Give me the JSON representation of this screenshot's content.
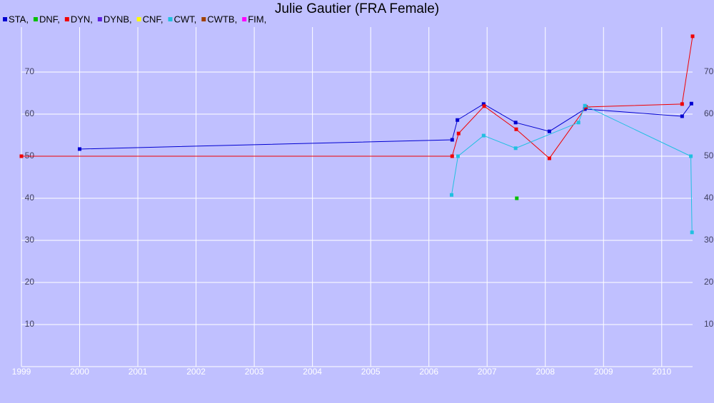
{
  "chart_data": {
    "type": "line",
    "title": "Julie Gautier (FRA Female)",
    "xlim": [
      1999,
      2010.53
    ],
    "ylim": [
      0,
      80
    ],
    "xticks": [
      1999,
      2000,
      2001,
      2002,
      2003,
      2004,
      2005,
      2006,
      2007,
      2008,
      2009,
      2010
    ],
    "yticks": [
      10,
      20,
      30,
      40,
      50,
      60,
      70
    ],
    "grid": true,
    "legend": "top",
    "series": [
      {
        "name": "STA,",
        "color": "#0000d0",
        "x": [
          2000.0,
          2006.4,
          2006.49,
          2006.94,
          2007.49,
          2008.07,
          2008.68,
          2010.35,
          2010.51
        ],
        "values": [
          51.7,
          53.9,
          58.6,
          62.4,
          58.0,
          55.9,
          61.2,
          59.5,
          62.5
        ]
      },
      {
        "name": "DNF,",
        "color": "#00c000",
        "x": [
          2007.51
        ],
        "values": [
          40
        ]
      },
      {
        "name": "DYN,",
        "color": "#f00000",
        "x": [
          1999.0,
          2006.4,
          2006.51,
          2006.95,
          2007.5,
          2008.07,
          2008.7,
          2010.35,
          2010.53
        ],
        "values": [
          50,
          50,
          55.4,
          61.9,
          56.4,
          49.5,
          61.7,
          62.4,
          78.5
        ]
      },
      {
        "name": "DYNB,",
        "color": "#6020e0",
        "x": [],
        "values": []
      },
      {
        "name": "CNF,",
        "color": "#ffff00",
        "x": [],
        "values": []
      },
      {
        "name": "CWT,",
        "color": "#20c0e0",
        "x": [
          2006.39,
          2006.5,
          2006.94,
          2007.49,
          2008.57,
          2008.68,
          2010.5,
          2010.52
        ],
        "values": [
          40.8,
          50,
          54.9,
          51.9,
          58.0,
          62.0,
          50,
          31.9
        ]
      },
      {
        "name": "CWTB,",
        "color": "#a04000",
        "x": [],
        "values": []
      },
      {
        "name": "FIM,",
        "color": "#ff00ff",
        "x": [],
        "values": []
      }
    ]
  }
}
